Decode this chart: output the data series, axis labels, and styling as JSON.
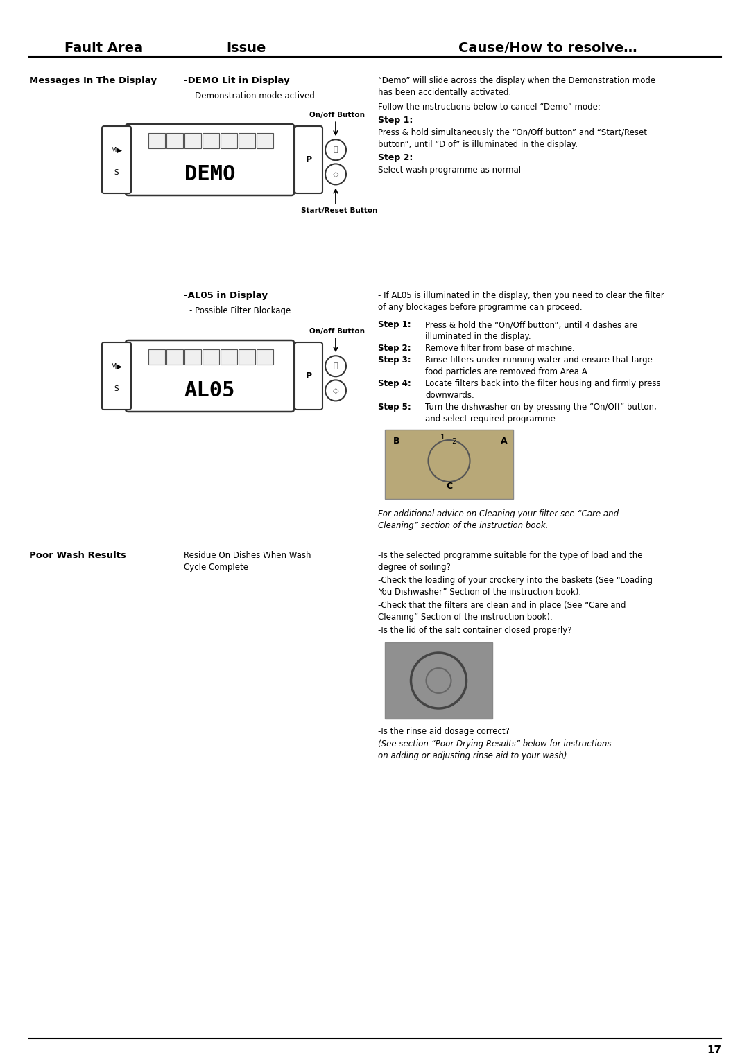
{
  "title_fault": "Fault Area",
  "title_issue": "Issue",
  "title_cause": "Cause/How to resolve…",
  "bg_color": "#ffffff",
  "page_number": "17",
  "fault1_label": "Messages In The Display",
  "issue1_label": "-DEMO Lit in Display",
  "issue1_sub": "- Demonstration mode actived",
  "cause1_line1": "“Demo” will slide across the display when the Demonstration mode",
  "cause1_line2": "has been accidentally activated.",
  "cause1_line3": "Follow the instructions below to cancel “Demo” mode:",
  "cause1_step1_label": "Step 1:",
  "cause1_step1_text1": "Press & hold simultaneously the “On/Off button” and “Start/Reset",
  "cause1_step1_text2": "button”, until “D of” is illuminated in the display.",
  "cause1_step2_label": "Step 2:",
  "cause1_step2_text": "Select wash programme as normal",
  "issue2_label": "-AL05 in Display",
  "issue2_sub": "- Possible Filter Blockage",
  "cause2_intro1": "- If AL05 is illuminated in the display, then you need to clear the filter",
  "cause2_intro2": "of any blockages before programme can proceed.",
  "cause2_step1_label": "Step 1:",
  "cause2_step1_text1": "Press & hold the “On/Off button”, until 4 dashes are",
  "cause2_step1_text2": "illuminated in the display.",
  "cause2_step2_label": "Step 2:",
  "cause2_step2_text": "Remove filter from base of machine.",
  "cause2_step3_label": "Step 3:",
  "cause2_step3_text1": "Rinse filters under running water and ensure that large",
  "cause2_step3_text2": "food particles are removed from Area A.",
  "cause2_step4_label": "Step 4:",
  "cause2_step4_text1": "Locate filters back into the filter housing and firmly press",
  "cause2_step4_text2": "downwards.",
  "cause2_step5_label": "Step 5:",
  "cause2_step5_text1": "Turn the dishwasher on by pressing the “On/Off” button,",
  "cause2_step5_text2": "and select required programme.",
  "filter_caption1": "For additional advice on Cleaning your filter see “Care and",
  "filter_caption2": "Cleaning” section of the instruction book.",
  "fault2_label": "Poor Wash Results",
  "issue3_label": "Residue On Dishes When Wash",
  "issue3_sub": "Cycle Complete",
  "cause3_line1": "-Is the selected programme suitable for the type of load and the",
  "cause3_line2": "degree of soiling?",
  "cause3_line3": "-Check the loading of your crockery into the baskets (See “Loading",
  "cause3_line4": "You Dishwasher” Section of the instruction book).",
  "cause3_line5": "-Check that the filters are clean and in place (See “Care and",
  "cause3_line6": "Cleaning” Section of the instruction book).",
  "cause3_line7": "-Is the lid of the salt container closed properly?",
  "cause3_line8": "-Is the rinse aid dosage correct?",
  "cause3_line9": "(See section “Poor Drying Results” below for instructions",
  "cause3_line10": "on adding or adjusting rinse aid to your wash)."
}
